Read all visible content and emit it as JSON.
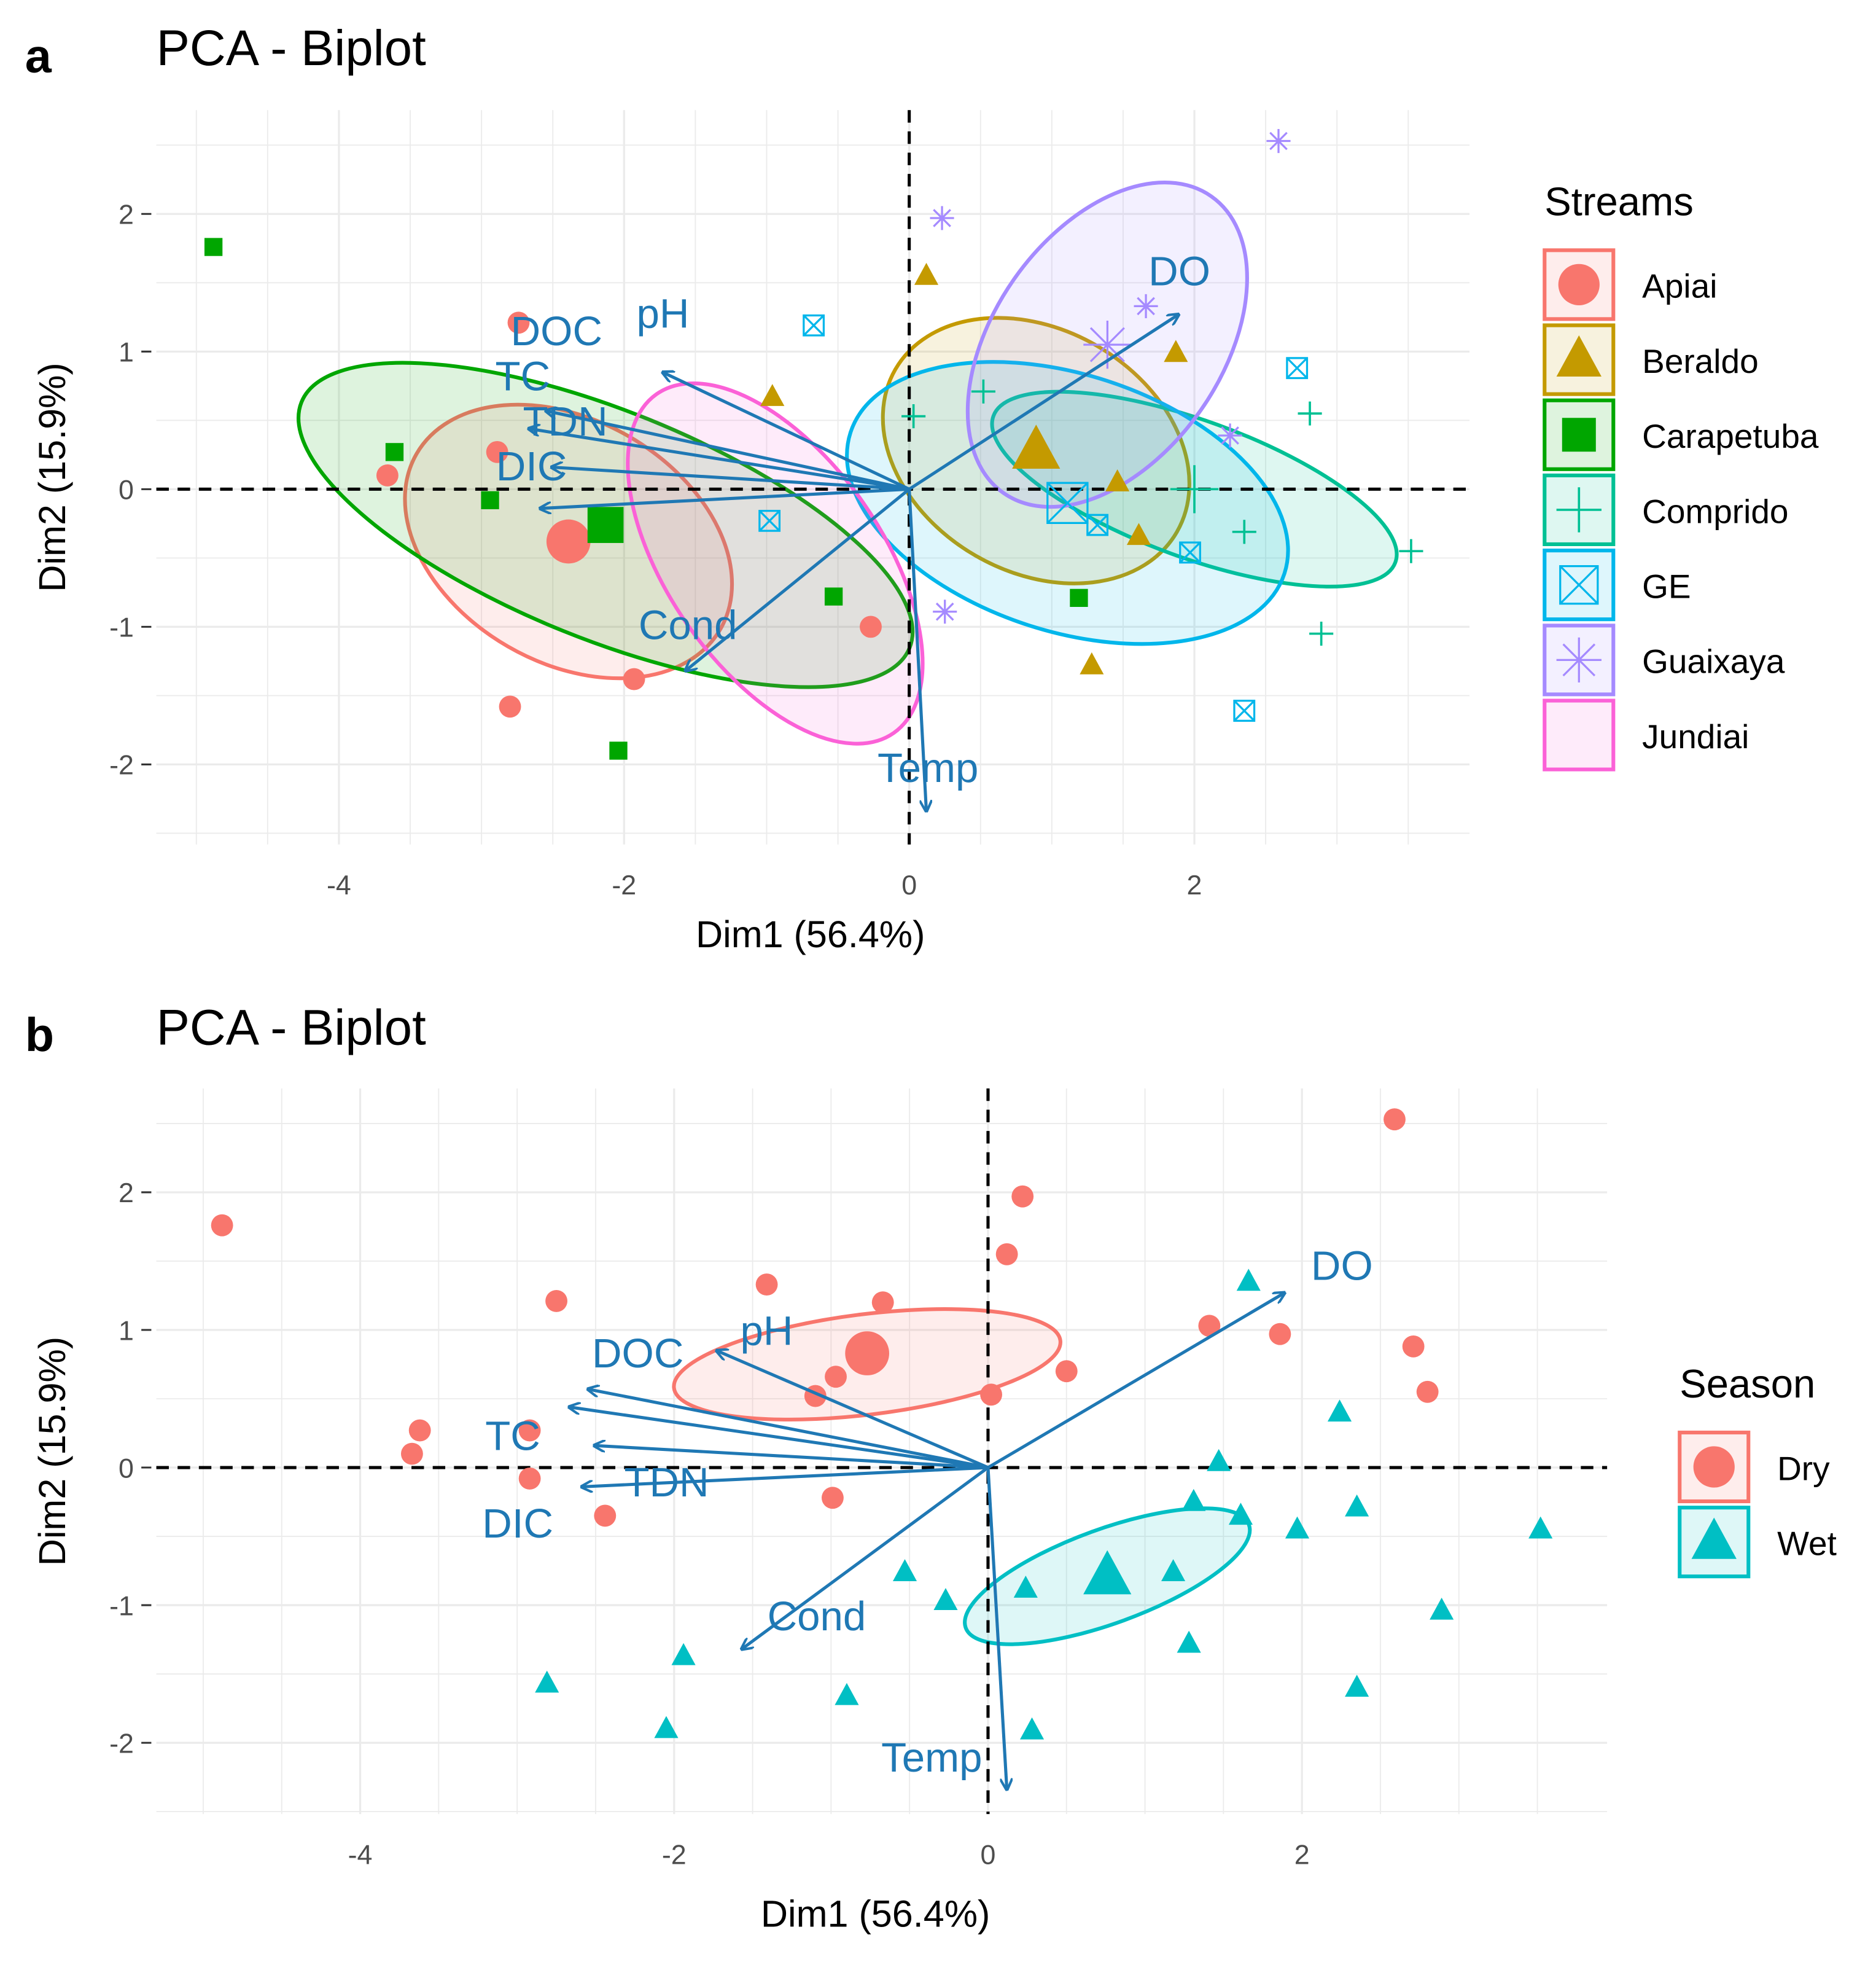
{
  "chart_data": [
    {
      "type": "scatter",
      "panel_letter": "a",
      "title": "PCA - Biplot",
      "xlabel": "Dim1 (56.4%)",
      "ylabel": "Dim2 (15.9%)",
      "xlim": [
        -5.28,
        3.93
      ],
      "ylim": [
        -2.58,
        2.75
      ],
      "xticks": [
        -4,
        -2,
        0,
        2
      ],
      "yticks": [
        -2,
        -1,
        0,
        1,
        2
      ],
      "grid": true,
      "legend": {
        "title": "Streams",
        "placement": "right"
      },
      "groups": [
        {
          "name": "Apiai",
          "color": "#F8766D",
          "shape": "circle",
          "points": [
            [
              -2.74,
              1.21
            ],
            [
              -2.89,
              0.27
            ],
            [
              -3.66,
              0.1
            ],
            [
              -0.27,
              -1.0
            ],
            [
              -1.93,
              -1.38
            ],
            [
              -2.8,
              -1.58
            ]
          ],
          "mean": [
            -2.39,
            -0.38
          ],
          "ellipse": {
            "rx": 1.23,
            "ry": 0.85,
            "angle": 30
          }
        },
        {
          "name": "Beraldo",
          "color": "#C49A00",
          "shape": "triangle",
          "points": [
            [
              0.12,
              1.55
            ],
            [
              -0.96,
              0.67
            ],
            [
              1.87,
              0.99
            ],
            [
              1.46,
              0.05
            ],
            [
              1.61,
              -0.34
            ],
            [
              1.28,
              -1.28
            ]
          ],
          "mean": [
            0.89,
            0.28
          ],
          "ellipse": {
            "rx": 1.14,
            "ry": 0.85,
            "angle": 30
          }
        },
        {
          "name": "Carapetuba",
          "color": "#00A600",
          "shape": "square",
          "points": [
            [
              -4.88,
              1.76
            ],
            [
              -3.61,
              0.27
            ],
            [
              -2.94,
              -0.08
            ],
            [
              -0.53,
              -0.78
            ],
            [
              1.19,
              -0.79
            ],
            [
              -2.04,
              -1.9
            ]
          ],
          "mean": [
            -2.13,
            -0.26
          ],
          "ellipse": {
            "rx": 2.3,
            "ry": 0.8,
            "angle": 22
          }
        },
        {
          "name": "Comprido",
          "color": "#00C094",
          "shape": "plus",
          "points": [
            [
              0.03,
              0.53
            ],
            [
              0.52,
              0.71
            ],
            [
              2.81,
              0.55
            ],
            [
              2.35,
              -0.31
            ],
            [
              3.52,
              -0.45
            ],
            [
              2.89,
              -1.05
            ]
          ],
          "mean": [
            2.0,
            0.0
          ],
          "ellipse": {
            "rx": 1.5,
            "ry": 0.48,
            "angle": 20
          }
        },
        {
          "name": "GE",
          "color": "#00B6EB",
          "shape": "boxx",
          "points": [
            [
              -0.67,
              1.19
            ],
            [
              -0.98,
              -0.23
            ],
            [
              2.72,
              0.88
            ],
            [
              1.32,
              -0.26
            ],
            [
              1.97,
              -0.46
            ],
            [
              2.35,
              -1.61
            ]
          ],
          "mean": [
            1.11,
            -0.1
          ],
          "ellipse": {
            "rx": 1.6,
            "ry": 0.9,
            "angle": 18
          }
        },
        {
          "name": "Guaixaya",
          "color": "#A58AFF",
          "shape": "asterisk",
          "points": [
            [
              2.59,
              2.53
            ],
            [
              0.23,
              1.97
            ],
            [
              1.66,
              1.33
            ],
            [
              2.25,
              0.39
            ],
            [
              0.25,
              -0.89
            ]
          ],
          "mean": [
            1.39,
            1.05
          ],
          "ellipse": {
            "rx": 1.27,
            "ry": 0.8,
            "angle": -55
          }
        },
        {
          "name": "Jundiai",
          "color": "#FB61D7",
          "shape": "none",
          "points": [],
          "mean": null,
          "ellipse": {
            "rx": 1.45,
            "ry": 0.75,
            "angle": 55,
            "center": [
              -0.94,
              -0.54
            ]
          }
        }
      ]
    },
    {
      "type": "scatter",
      "panel_letter": "b",
      "title": "PCA - Biplot",
      "xlabel": "Dim1 (56.4%)",
      "ylabel": "Dim2 (15.9%)",
      "xlim": [
        -5.3,
        3.94
      ],
      "ylim": [
        -2.52,
        2.75
      ],
      "xticks": [
        -4,
        -2,
        0,
        2
      ],
      "yticks": [
        -2,
        -1,
        0,
        1,
        2
      ],
      "grid": true,
      "legend": {
        "title": "Season",
        "placement": "right"
      },
      "groups": [
        {
          "name": "Dry",
          "color": "#F8766D",
          "shape": "circle",
          "points": [
            [
              -4.88,
              1.76
            ],
            [
              -2.75,
              1.21
            ],
            [
              -1.41,
              1.33
            ],
            [
              -0.67,
              1.2
            ],
            [
              -0.97,
              0.66
            ],
            [
              -1.1,
              0.52
            ],
            [
              0.02,
              0.53
            ],
            [
              0.5,
              0.7
            ],
            [
              0.22,
              1.97
            ],
            [
              0.12,
              1.55
            ],
            [
              1.41,
              1.03
            ],
            [
              1.86,
              0.97
            ],
            [
              2.71,
              0.88
            ],
            [
              2.8,
              0.55
            ],
            [
              2.59,
              2.53
            ],
            [
              -3.62,
              0.27
            ],
            [
              -3.67,
              0.1
            ],
            [
              -2.92,
              0.27
            ],
            [
              -2.92,
              -0.08
            ],
            [
              -2.44,
              -0.35
            ],
            [
              -0.99,
              -0.22
            ]
          ],
          "mean": [
            -0.77,
            0.83
          ],
          "ellipse": {
            "rx": 1.24,
            "ry": 0.32,
            "angle": -7,
            "center": [
              -0.77,
              0.75
            ]
          }
        },
        {
          "name": "Wet",
          "color": "#00BFC4",
          "shape": "triangle",
          "points": [
            [
              1.66,
              1.35
            ],
            [
              2.24,
              0.4
            ],
            [
              1.47,
              0.04
            ],
            [
              1.31,
              -0.25
            ],
            [
              1.61,
              -0.35
            ],
            [
              1.97,
              -0.45
            ],
            [
              2.35,
              -0.29
            ],
            [
              3.52,
              -0.45
            ],
            [
              2.89,
              -1.04
            ],
            [
              2.35,
              -1.6
            ],
            [
              1.28,
              -1.28
            ],
            [
              1.18,
              -0.76
            ],
            [
              0.24,
              -0.88
            ],
            [
              0.28,
              -1.91
            ],
            [
              -0.27,
              -0.97
            ],
            [
              -0.53,
              -0.76
            ],
            [
              -0.9,
              -1.66
            ],
            [
              -1.94,
              -1.37
            ],
            [
              -2.05,
              -1.9
            ],
            [
              -2.81,
              -1.57
            ]
          ],
          "mean": [
            0.76,
            -0.79
          ],
          "ellipse": {
            "rx": 0.96,
            "ry": 0.3,
            "angle": -20,
            "center": [
              0.76,
              -0.79
            ]
          }
        }
      ]
    }
  ],
  "variables": [
    {
      "name": "DO",
      "x": 1.89,
      "y": 1.27
    },
    {
      "name": "pH",
      "x": -1.73,
      "y": 0.85
    },
    {
      "name": "DOC",
      "x": -2.55,
      "y": 0.57
    },
    {
      "name": "TC",
      "x": -2.67,
      "y": 0.44
    },
    {
      "name": "TDN",
      "x": -2.51,
      "y": 0.16
    },
    {
      "name": "DIC",
      "x": -2.59,
      "y": -0.14
    },
    {
      "name": "Cond",
      "x": -1.57,
      "y": -1.32
    },
    {
      "name": "Temp",
      "x": 0.12,
      "y": -2.34
    }
  ],
  "colors": {
    "arrow": "#1F78B4",
    "grid": "#EBEBEB"
  }
}
